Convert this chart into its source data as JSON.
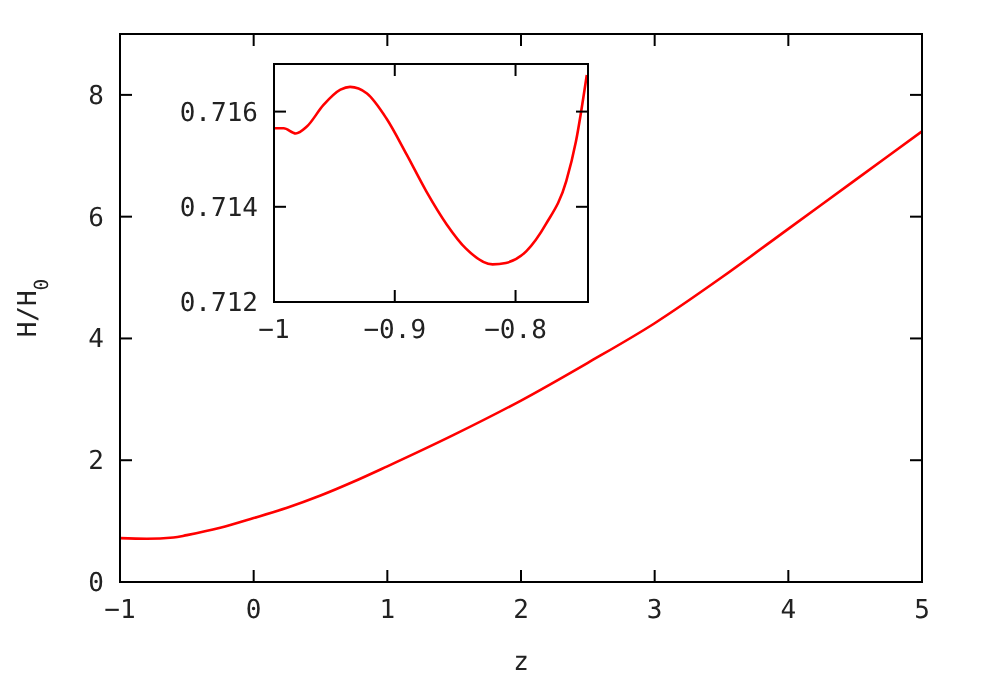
{
  "chart_data": [
    {
      "type": "line",
      "xlabel": "z",
      "ylabel": "H/H$_{0}$",
      "xlim": [
        -1,
        5
      ],
      "ylim": [
        0,
        9
      ],
      "xticks": [
        -1,
        0,
        1,
        2,
        3,
        4,
        5
      ],
      "yticks": [
        0,
        2,
        4,
        6,
        8
      ],
      "grid": false,
      "marker": "none",
      "line_style": "solid",
      "series": [
        {
          "color": "#ff0000",
          "x": [
            -1,
            -0.8,
            -0.6,
            -0.5,
            -0.25,
            0,
            0.25,
            0.5,
            0.75,
            1,
            1.5,
            2,
            2.5,
            3,
            3.5,
            4,
            4.5,
            5
          ],
          "values": [
            0.72,
            0.71,
            0.73,
            0.77,
            0.89,
            1.05,
            1.22,
            1.42,
            1.65,
            1.9,
            2.42,
            2.98,
            3.6,
            4.25,
            5.0,
            5.8,
            6.6,
            7.4
          ]
        }
      ]
    },
    {
      "type": "line",
      "xlim": [
        -1,
        -0.74
      ],
      "ylim": [
        0.712,
        0.717
      ],
      "xticks": [
        -1,
        -0.9,
        -0.8
      ],
      "yticks": [
        0.712,
        0.714,
        0.716
      ],
      "grid": false,
      "marker": "none",
      "line_style": "solid",
      "series": [
        {
          "color": "#ff0000",
          "x": [
            -1,
            -0.992,
            -0.982,
            -0.973,
            -0.959,
            -0.945,
            -0.937,
            -0.923,
            -0.907,
            -0.89,
            -0.874,
            -0.857,
            -0.841,
            -0.819,
            -0.808,
            -0.791,
            -0.775,
            -0.758,
            -0.75,
            -0.741
          ],
          "values": [
            0.71565,
            0.71565,
            0.71554,
            0.71568,
            0.71614,
            0.71646,
            0.71652,
            0.71638,
            0.71586,
            0.71509,
            0.71433,
            0.71363,
            0.71312,
            0.71279,
            0.71282,
            0.71307,
            0.71363,
            0.71454,
            0.71537,
            0.71677
          ]
        }
      ]
    }
  ]
}
